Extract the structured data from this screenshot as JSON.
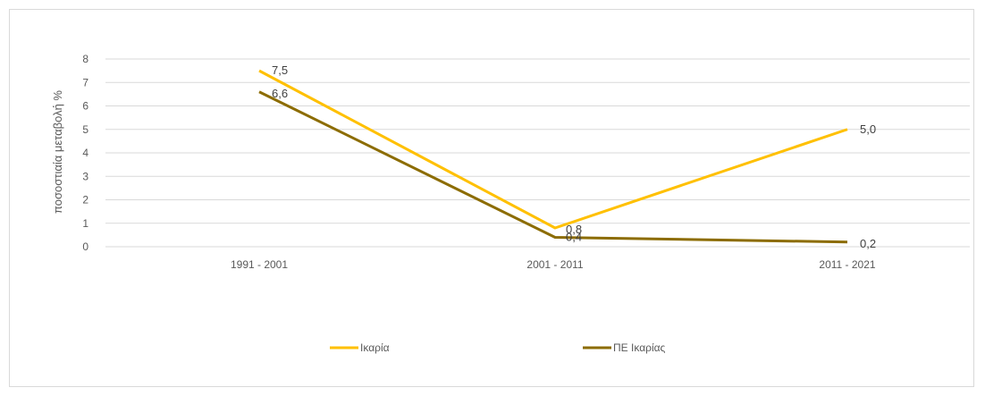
{
  "chart_data": {
    "type": "line",
    "title": "",
    "xlabel": "",
    "ylabel": "ποσοστιαία μεταβολή %",
    "ylim": [
      0,
      8
    ],
    "yticks": [
      "0",
      "1",
      "2",
      "3",
      "4",
      "5",
      "6",
      "7",
      "8"
    ],
    "categories": [
      "1991 - 2001",
      "2001 - 2011",
      "2011 - 2021"
    ],
    "grid": true,
    "legend_position": "bottom",
    "series": [
      {
        "name": "Ικαρία",
        "values": [
          7.5,
          0.8,
          5.0
        ],
        "labels": [
          "7,5",
          "0,8",
          "5,0"
        ],
        "color": "#ffc000"
      },
      {
        "name": "ΠΕ Ικαρίας",
        "values": [
          6.6,
          0.4,
          0.2
        ],
        "labels": [
          "6,6",
          "0,4",
          "0,2"
        ],
        "color": "#8c6c00"
      }
    ]
  }
}
